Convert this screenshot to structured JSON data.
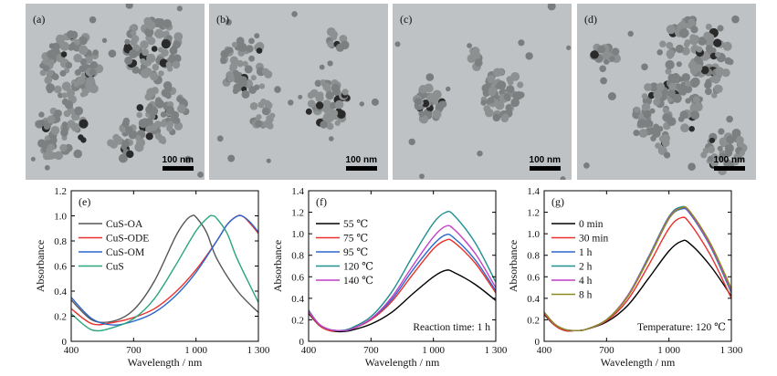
{
  "tem_panels": [
    {
      "label": "(a)",
      "scale": "100 nm"
    },
    {
      "label": "(b)",
      "scale": "100 nm"
    },
    {
      "label": "(c)",
      "scale": "100 nm"
    },
    {
      "label": "(d)",
      "scale": "100 nm"
    }
  ],
  "chart_data": [
    {
      "type": "line",
      "panel": "(e)",
      "xlabel": "Wavelength / nm",
      "ylabel": "Absorbance",
      "xlim": [
        400,
        1300
      ],
      "ylim": [
        0,
        1.2
      ],
      "xticks": [
        400,
        700,
        1000,
        1300
      ],
      "xtick_labels": [
        "400",
        "700",
        "1 000",
        "1 300"
      ],
      "yticks": [
        0,
        0.2,
        0.4,
        0.6,
        0.8,
        1.0,
        1.2
      ],
      "ytick_labels": [
        "0",
        "0.2",
        "0.4",
        "0.6",
        "0.8",
        "1.0",
        "1.2"
      ],
      "legend": "top-left",
      "annotation": "",
      "series": [
        {
          "name": "CuS-OA",
          "color": "#555555",
          "x": [
            400,
            500,
            600,
            700,
            800,
            900,
            950,
            980,
            1000,
            1050,
            1100,
            1200,
            1300
          ],
          "y": [
            0.33,
            0.17,
            0.16,
            0.25,
            0.48,
            0.83,
            0.96,
            1.0,
            0.99,
            0.87,
            0.66,
            0.4,
            0.23
          ]
        },
        {
          "name": "CuS-ODE",
          "color": "#e8312d",
          "x": [
            400,
            500,
            600,
            700,
            800,
            900,
            1000,
            1100,
            1150,
            1200,
            1230,
            1260,
            1300
          ],
          "y": [
            0.26,
            0.14,
            0.15,
            0.19,
            0.26,
            0.39,
            0.57,
            0.8,
            0.93,
            1.0,
            0.99,
            0.94,
            0.86
          ]
        },
        {
          "name": "CuS-OM",
          "color": "#2b66cf",
          "x": [
            400,
            500,
            600,
            700,
            800,
            900,
            1000,
            1100,
            1150,
            1190,
            1220,
            1260,
            1300
          ],
          "y": [
            0.35,
            0.18,
            0.13,
            0.16,
            0.23,
            0.36,
            0.55,
            0.8,
            0.93,
            0.99,
            1.0,
            0.95,
            0.87
          ]
        },
        {
          "name": "CuS",
          "color": "#2aa57e",
          "x": [
            400,
            500,
            600,
            700,
            800,
            900,
            1000,
            1060,
            1080,
            1100,
            1150,
            1200,
            1300
          ],
          "y": [
            0.22,
            0.09,
            0.11,
            0.18,
            0.34,
            0.6,
            0.88,
            0.99,
            1.0,
            0.98,
            0.86,
            0.65,
            0.31
          ]
        }
      ]
    },
    {
      "type": "line",
      "panel": "(f)",
      "xlabel": "Wavelength / nm",
      "ylabel": "Absorbance",
      "xlim": [
        400,
        1300
      ],
      "ylim": [
        0,
        1.4
      ],
      "xticks": [
        400,
        700,
        1000,
        1300
      ],
      "xtick_labels": [
        "400",
        "700",
        "1 000",
        "1 300"
      ],
      "yticks": [
        0,
        0.2,
        0.4,
        0.6,
        0.8,
        1.0,
        1.2,
        1.4
      ],
      "ytick_labels": [
        "0",
        "0.2",
        "0.4",
        "0.6",
        "0.8",
        "1.0",
        "1.2",
        "1.4"
      ],
      "legend": "top-left",
      "annotation": "Reaction time: 1 h",
      "series": [
        {
          "name": "55 ℃",
          "color": "#000000",
          "x": [
            400,
            450,
            500,
            550,
            600,
            700,
            800,
            900,
            1000,
            1060,
            1100,
            1200,
            1300
          ],
          "y": [
            0.26,
            0.15,
            0.1,
            0.09,
            0.1,
            0.16,
            0.27,
            0.44,
            0.6,
            0.66,
            0.64,
            0.53,
            0.38
          ]
        },
        {
          "name": "75 ℃",
          "color": "#e8312d",
          "x": [
            400,
            450,
            500,
            550,
            600,
            700,
            800,
            900,
            1000,
            1060,
            1100,
            1200,
            1300
          ],
          "y": [
            0.27,
            0.15,
            0.1,
            0.1,
            0.11,
            0.2,
            0.37,
            0.62,
            0.86,
            0.94,
            0.92,
            0.73,
            0.45
          ]
        },
        {
          "name": "95 ℃",
          "color": "#2b66cf",
          "x": [
            400,
            450,
            500,
            550,
            600,
            700,
            800,
            900,
            1000,
            1060,
            1100,
            1200,
            1300
          ],
          "y": [
            0.28,
            0.16,
            0.11,
            0.1,
            0.11,
            0.21,
            0.39,
            0.66,
            0.9,
            0.99,
            0.96,
            0.76,
            0.47
          ]
        },
        {
          "name": "120 ℃",
          "color": "#1f8f8f",
          "x": [
            400,
            450,
            500,
            550,
            600,
            700,
            800,
            900,
            1000,
            1060,
            1100,
            1200,
            1300
          ],
          "y": [
            0.29,
            0.16,
            0.11,
            0.1,
            0.12,
            0.23,
            0.46,
            0.79,
            1.1,
            1.2,
            1.17,
            0.92,
            0.55
          ]
        },
        {
          "name": "140 ℃",
          "color": "#c23fc6",
          "x": [
            400,
            450,
            500,
            550,
            600,
            700,
            800,
            900,
            1000,
            1060,
            1100,
            1200,
            1300
          ],
          "y": [
            0.28,
            0.16,
            0.11,
            0.1,
            0.11,
            0.21,
            0.41,
            0.7,
            0.97,
            1.07,
            1.04,
            0.82,
            0.5
          ]
        }
      ]
    },
    {
      "type": "line",
      "panel": "(g)",
      "xlabel": "Wavelength / nm",
      "ylabel": "Absorbance",
      "xlim": [
        400,
        1300
      ],
      "ylim": [
        0,
        1.4
      ],
      "xticks": [
        400,
        700,
        1000,
        1300
      ],
      "xtick_labels": [
        "400",
        "700",
        "1 000",
        "1 300"
      ],
      "yticks": [
        0,
        0.2,
        0.4,
        0.6,
        0.8,
        1.0,
        1.2,
        1.4
      ],
      "ytick_labels": [
        "0",
        "0.2",
        "0.4",
        "0.6",
        "0.8",
        "1.0",
        "1.2",
        "1.4"
      ],
      "legend": "top-left",
      "annotation": "Temperature: 120 ℃",
      "series": [
        {
          "name": "0 min",
          "color": "#000000",
          "x": [
            400,
            450,
            500,
            550,
            600,
            700,
            800,
            900,
            1000,
            1060,
            1100,
            1200,
            1300
          ],
          "y": [
            0.25,
            0.15,
            0.1,
            0.1,
            0.11,
            0.18,
            0.33,
            0.58,
            0.84,
            0.93,
            0.91,
            0.7,
            0.42
          ]
        },
        {
          "name": "30 min",
          "color": "#e8312d",
          "x": [
            400,
            450,
            500,
            550,
            600,
            700,
            800,
            900,
            1000,
            1060,
            1100,
            1200,
            1300
          ],
          "y": [
            0.26,
            0.15,
            0.1,
            0.1,
            0.11,
            0.19,
            0.38,
            0.7,
            1.05,
            1.15,
            1.1,
            0.8,
            0.4
          ]
        },
        {
          "name": "1 h",
          "color": "#2b66cf",
          "x": [
            400,
            450,
            500,
            550,
            600,
            700,
            800,
            900,
            1000,
            1060,
            1100,
            1200,
            1300
          ],
          "y": [
            0.27,
            0.16,
            0.11,
            0.1,
            0.11,
            0.2,
            0.41,
            0.76,
            1.14,
            1.23,
            1.19,
            0.88,
            0.46
          ]
        },
        {
          "name": "2 h",
          "color": "#1f8f8f",
          "x": [
            400,
            450,
            500,
            550,
            600,
            700,
            800,
            900,
            1000,
            1060,
            1100,
            1200,
            1300
          ],
          "y": [
            0.27,
            0.16,
            0.11,
            0.1,
            0.11,
            0.2,
            0.42,
            0.78,
            1.16,
            1.25,
            1.2,
            0.88,
            0.45
          ]
        },
        {
          "name": "4 h",
          "color": "#c23fc6",
          "x": [
            400,
            450,
            500,
            550,
            600,
            700,
            800,
            900,
            1000,
            1060,
            1100,
            1200,
            1300
          ],
          "y": [
            0.27,
            0.16,
            0.11,
            0.1,
            0.11,
            0.2,
            0.42,
            0.77,
            1.15,
            1.24,
            1.2,
            0.89,
            0.47
          ]
        },
        {
          "name": "8 h",
          "color": "#8b8b1c",
          "x": [
            400,
            450,
            500,
            550,
            600,
            700,
            800,
            900,
            1000,
            1060,
            1100,
            1200,
            1300
          ],
          "y": [
            0.27,
            0.16,
            0.11,
            0.1,
            0.11,
            0.2,
            0.41,
            0.76,
            1.14,
            1.24,
            1.21,
            0.91,
            0.49
          ]
        }
      ]
    }
  ]
}
